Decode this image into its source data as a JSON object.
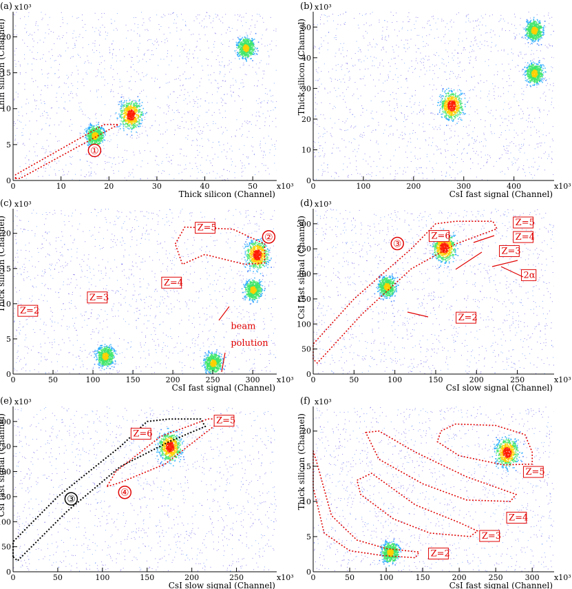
{
  "panel_labels": [
    "(a)",
    "(b)",
    "(c)",
    "(d)",
    "(e)",
    "(f)"
  ],
  "colors": {
    "annotation": "#e00000",
    "scatter_low": "#4a2be0",
    "scatter_mid": "#1a9bff",
    "scatter_high": "#2ee07a",
    "scatter_peak": "#ffe400",
    "scatter_max": "#ff2000"
  },
  "chart_data": [
    {
      "panel": "(a)",
      "type": "heatmap",
      "xlabel": "Thick silicon (Channel)",
      "ylabel": "Thin silicon (Channel)",
      "x_multiplier": "x10³",
      "y_multiplier": "x10³",
      "xlim": [
        0,
        55
      ],
      "ylim": [
        0,
        23.5
      ],
      "xticks": [
        "0",
        "10",
        "20",
        "30",
        "40",
        "50"
      ],
      "yticks": [
        "0",
        "5",
        "10",
        "15",
        "20"
      ],
      "annotations": [
        {
          "text": "①",
          "x": 17,
          "y": 3.8
        }
      ],
      "gates": [
        {
          "label": "①",
          "points": [
            [
              0.5,
              0.3
            ],
            [
              1.5,
              0.3
            ],
            [
              22,
              7.8
            ],
            [
              19,
              7.8
            ],
            [
              0.5,
              0.8
            ]
          ]
        }
      ],
      "clusters": [
        [
          24.5,
          9.2
        ],
        [
          48.5,
          18.5
        ],
        [
          17,
          6.3
        ]
      ]
    },
    {
      "panel": "(b)",
      "type": "heatmap",
      "xlabel": "CsI fast signal (Channel)",
      "ylabel": "Thick silicon (Channel)",
      "x_multiplier": "x10³",
      "y_multiplier": "x10³",
      "xlim": [
        0,
        480
      ],
      "ylim": [
        0,
        55
      ],
      "xticks": [
        "0",
        "100",
        "200",
        "300",
        "400"
      ],
      "yticks": [
        "0",
        "10",
        "20",
        "30",
        "40",
        "50"
      ],
      "clusters": [
        [
          275,
          24.5
        ],
        [
          440,
          49
        ],
        [
          440,
          35
        ]
      ]
    },
    {
      "panel": "(c)",
      "type": "heatmap",
      "xlabel": "CsI fast signal (Channel)",
      "ylabel": "Thick silicon (Channel)",
      "x_multiplier": "x10³",
      "y_multiplier": "x10³",
      "xlim": [
        0,
        330
      ],
      "ylim": [
        0,
        23.5
      ],
      "xticks": [
        "0",
        "50",
        "100",
        "150",
        "200",
        "250",
        "300"
      ],
      "yticks": [
        "0",
        "5",
        "10",
        "15",
        "20"
      ],
      "annotations": [
        {
          "text": "Z=5",
          "x": 228,
          "y": 20.4
        },
        {
          "text": "Z=4",
          "x": 186,
          "y": 12.6
        },
        {
          "text": "Z=3",
          "x": 93,
          "y": 10.5
        },
        {
          "text": "Z=2",
          "x": 6,
          "y": 8.6
        },
        {
          "text": "②",
          "x": 320,
          "y": 19.1
        },
        {
          "text": "beam",
          "x": 270,
          "y": 6.4
        },
        {
          "text": "polution",
          "x": 270,
          "y": 4.0
        }
      ],
      "gates": [
        {
          "label": "②",
          "points": [
            [
              203,
              18.5
            ],
            [
              215,
              20.9
            ],
            [
              275,
              20.6
            ],
            [
              315,
              18.5
            ],
            [
              315,
              15.8
            ],
            [
              290,
              15.6
            ],
            [
              240,
              17
            ],
            [
              212,
              15.6
            ]
          ]
        }
      ],
      "clusters": [
        [
          305,
          17
        ],
        [
          300,
          12
        ],
        [
          250,
          1.6
        ],
        [
          115,
          2.6
        ]
      ]
    },
    {
      "panel": "(d)",
      "type": "heatmap",
      "xlabel": "CsI slow signal (Channel)",
      "ylabel": "CsI fast signal (Channel)",
      "x_multiplier": "x10³",
      "y_multiplier": "x10³",
      "xlim": [
        0,
        295
      ],
      "ylim": [
        0,
        330
      ],
      "xticks": [
        "0",
        "50",
        "100",
        "150",
        "200",
        "250"
      ],
      "yticks": [
        "0",
        "50",
        "100",
        "150",
        "200",
        "250",
        "300"
      ],
      "annotations": [
        {
          "text": "Z=6",
          "x": 142,
          "y": 270
        },
        {
          "text": "Z=5",
          "x": 245,
          "y": 297
        },
        {
          "text": "Z=4",
          "x": 245,
          "y": 268
        },
        {
          "text": "Z=3",
          "x": 228,
          "y": 240
        },
        {
          "text": "2α",
          "x": 255,
          "y": 192
        },
        {
          "text": "Z=2",
          "x": 175,
          "y": 107
        },
        {
          "text": "③",
          "x": 103,
          "y": 255
        }
      ],
      "gates": [
        {
          "label": "③",
          "points": [
            [
              0,
              30
            ],
            [
              0,
              60
            ],
            [
              50,
              150
            ],
            [
              120,
              250
            ],
            [
              150,
              300
            ],
            [
              175,
              305
            ],
            [
              220,
              305
            ],
            [
              225,
              290
            ],
            [
              175,
              260
            ],
            [
              120,
              210
            ],
            [
              60,
              120
            ],
            [
              5,
              22
            ]
          ]
        }
      ],
      "clusters": [
        [
          160,
          253
        ],
        [
          90,
          175
        ]
      ]
    },
    {
      "panel": "(e)",
      "type": "heatmap",
      "xlabel": "CsI slow signal (Channel)",
      "ylabel": "CsI fast signal (Channel)",
      "x_multiplier": "x10³",
      "y_multiplier": "x10³",
      "xlim": [
        0,
        295
      ],
      "ylim": [
        0,
        330
      ],
      "xticks": [
        "0",
        "50",
        "100",
        "150",
        "200",
        "250"
      ],
      "yticks": [
        "0",
        "50",
        "100",
        "150",
        "200",
        "250",
        "300"
      ],
      "annotations": [
        {
          "text": "Z=6",
          "x": 132,
          "y": 270
        },
        {
          "text": "Z=5",
          "x": 225,
          "y": 296
        },
        {
          "text": "③",
          "x": 65,
          "y": 140
        },
        {
          "text": "④",
          "x": 125,
          "y": 153
        }
      ],
      "gates": [
        {
          "label": "③",
          "points": [
            [
              0,
              30
            ],
            [
              0,
              60
            ],
            [
              50,
              150
            ],
            [
              120,
              250
            ],
            [
              150,
              300
            ],
            [
              175,
              305
            ],
            [
              210,
              305
            ],
            [
              215,
              290
            ],
            [
              175,
              260
            ],
            [
              120,
              210
            ],
            [
              60,
              120
            ],
            [
              5,
              22
            ]
          ]
        },
        {
          "label": "④",
          "points": [
            [
              105,
              170
            ],
            [
              120,
              178
            ],
            [
              170,
              215
            ],
            [
              228,
              295
            ],
            [
              230,
              305
            ],
            [
              218,
              305
            ],
            [
              165,
              270
            ],
            [
              115,
              200
            ]
          ]
        }
      ],
      "clusters": [
        [
          175,
          250
        ]
      ]
    },
    {
      "panel": "(f)",
      "type": "heatmap",
      "xlabel": "CsI fast signal (Channel)",
      "ylabel": "Thick silicon (Channel)",
      "x_multiplier": "x10³",
      "y_multiplier": "x10³",
      "xlim": [
        0,
        330
      ],
      "ylim": [
        0,
        23.5
      ],
      "xticks": [
        "0",
        "50",
        "100",
        "150",
        "200",
        "250",
        "300"
      ],
      "yticks": [
        "0",
        "5",
        "10",
        "15",
        "20"
      ],
      "annotations": [
        {
          "text": "Z=5",
          "x": 288,
          "y": 13.8
        },
        {
          "text": "Z=4",
          "x": 265,
          "y": 7.3
        },
        {
          "text": "Z=3",
          "x": 228,
          "y": 4.7
        },
        {
          "text": "Z=2",
          "x": 158,
          "y": 2.2
        }
      ],
      "gates": [
        {
          "label": "Z=5",
          "points": [
            [
              175,
              20
            ],
            [
              195,
              21
            ],
            [
              250,
              20.8
            ],
            [
              290,
              19.5
            ],
            [
              300,
              17
            ],
            [
              300,
              15.3
            ],
            [
              260,
              15.2
            ],
            [
              200,
              16.5
            ],
            [
              170,
              18.5
            ]
          ]
        },
        {
          "label": "Z=4",
          "points": [
            [
              72,
              19.8
            ],
            [
              90,
              20
            ],
            [
              140,
              17
            ],
            [
              210,
              13.5
            ],
            [
              278,
              11
            ],
            [
              270,
              10
            ],
            [
              210,
              10.2
            ],
            [
              150,
              12.5
            ],
            [
              90,
              16
            ]
          ]
        },
        {
          "label": "Z=3",
          "points": [
            [
              60,
              13
            ],
            [
              80,
              14
            ],
            [
              140,
              9.5
            ],
            [
              200,
              7
            ],
            [
              225,
              5.8
            ],
            [
              215,
              5.0
            ],
            [
              160,
              5.5
            ],
            [
              110,
              7.5
            ],
            [
              65,
              11
            ]
          ]
        },
        {
          "label": "Z=2",
          "points": [
            [
              0,
              17.2
            ],
            [
              5,
              15.5
            ],
            [
              25,
              8
            ],
            [
              60,
              4.5
            ],
            [
              100,
              3.3
            ],
            [
              145,
              2.8
            ],
            [
              140,
              2.0
            ],
            [
              95,
              2.3
            ],
            [
              50,
              3
            ],
            [
              15,
              5.5
            ],
            [
              0,
              12
            ]
          ]
        }
      ],
      "clusters": [
        [
          265,
          17
        ],
        [
          105,
          2.8
        ]
      ]
    }
  ]
}
